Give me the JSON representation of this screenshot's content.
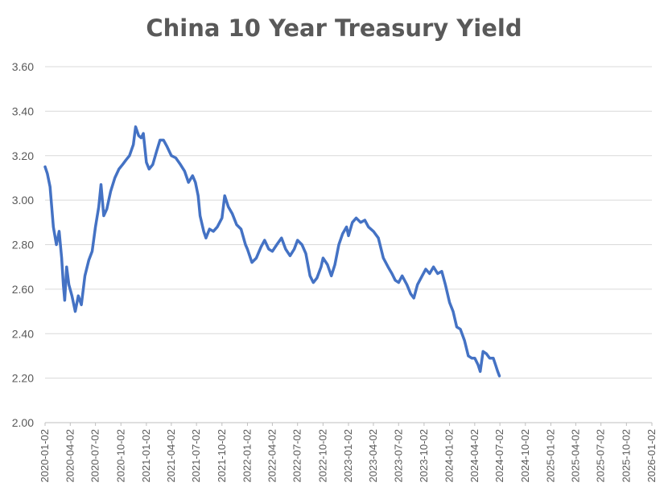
{
  "chart_data": {
    "type": "line",
    "title": "China 10 Year Treasury Yield",
    "xlabel": "",
    "ylabel": "",
    "ylim": [
      2.0,
      3.6
    ],
    "yticks": [
      "3.60",
      "3.40",
      "3.20",
      "3.00",
      "2.80",
      "2.60",
      "2.40",
      "2.20",
      "2.00"
    ],
    "xlim": [
      "2020-01-02",
      "2026-01-02"
    ],
    "xticks": [
      "2020-01-02",
      "2020-04-02",
      "2020-07-02",
      "2020-10-02",
      "2021-01-02",
      "2021-04-02",
      "2021-07-02",
      "2021-10-02",
      "2022-01-02",
      "2022-04-02",
      "2022-07-02",
      "2022-10-02",
      "2023-01-02",
      "2023-04-02",
      "2023-07-02",
      "2023-10-02",
      "2024-01-02",
      "2024-04-02",
      "2024-07-02",
      "2024-10-02",
      "2025-01-02",
      "2025-04-02",
      "2025-07-02",
      "2025-10-02",
      "2026-01-02"
    ],
    "grid": true,
    "line_color": "#4472C4",
    "series": [
      {
        "points": [
          [
            "2020-01-02",
            3.15
          ],
          [
            "2020-01-10",
            3.12
          ],
          [
            "2020-01-20",
            3.06
          ],
          [
            "2020-02-01",
            2.88
          ],
          [
            "2020-02-12",
            2.8
          ],
          [
            "2020-02-22",
            2.86
          ],
          [
            "2020-03-02",
            2.74
          ],
          [
            "2020-03-08",
            2.62
          ],
          [
            "2020-03-13",
            2.55
          ],
          [
            "2020-03-20",
            2.7
          ],
          [
            "2020-03-28",
            2.62
          ],
          [
            "2020-04-08",
            2.57
          ],
          [
            "2020-04-20",
            2.5
          ],
          [
            "2020-05-01",
            2.57
          ],
          [
            "2020-05-12",
            2.53
          ],
          [
            "2020-05-25",
            2.66
          ],
          [
            "2020-06-08",
            2.73
          ],
          [
            "2020-06-20",
            2.77
          ],
          [
            "2020-07-02",
            2.88
          ],
          [
            "2020-07-14",
            2.97
          ],
          [
            "2020-07-22",
            3.07
          ],
          [
            "2020-08-01",
            2.93
          ],
          [
            "2020-08-12",
            2.96
          ],
          [
            "2020-08-26",
            3.04
          ],
          [
            "2020-09-10",
            3.1
          ],
          [
            "2020-09-25",
            3.14
          ],
          [
            "2020-10-08",
            3.16
          ],
          [
            "2020-10-20",
            3.18
          ],
          [
            "2020-11-02",
            3.2
          ],
          [
            "2020-11-16",
            3.25
          ],
          [
            "2020-11-24",
            3.33
          ],
          [
            "2020-12-05",
            3.29
          ],
          [
            "2020-12-14",
            3.28
          ],
          [
            "2020-12-22",
            3.3
          ],
          [
            "2021-01-02",
            3.17
          ],
          [
            "2021-01-12",
            3.14
          ],
          [
            "2021-01-25",
            3.16
          ],
          [
            "2021-02-08",
            3.22
          ],
          [
            "2021-02-20",
            3.27
          ],
          [
            "2021-03-05",
            3.27
          ],
          [
            "2021-03-18",
            3.24
          ],
          [
            "2021-04-02",
            3.2
          ],
          [
            "2021-04-18",
            3.19
          ],
          [
            "2021-05-05",
            3.16
          ],
          [
            "2021-05-20",
            3.13
          ],
          [
            "2021-06-03",
            3.08
          ],
          [
            "2021-06-18",
            3.11
          ],
          [
            "2021-06-28",
            3.08
          ],
          [
            "2021-07-08",
            3.02
          ],
          [
            "2021-07-15",
            2.93
          ],
          [
            "2021-07-28",
            2.86
          ],
          [
            "2021-08-05",
            2.83
          ],
          [
            "2021-08-18",
            2.87
          ],
          [
            "2021-09-01",
            2.86
          ],
          [
            "2021-09-15",
            2.88
          ],
          [
            "2021-10-02",
            2.92
          ],
          [
            "2021-10-12",
            3.02
          ],
          [
            "2021-10-25",
            2.97
          ],
          [
            "2021-11-08",
            2.94
          ],
          [
            "2021-11-24",
            2.89
          ],
          [
            "2021-12-10",
            2.87
          ],
          [
            "2021-12-26",
            2.8
          ],
          [
            "2022-01-02",
            2.78
          ],
          [
            "2022-01-18",
            2.72
          ],
          [
            "2022-02-03",
            2.74
          ],
          [
            "2022-02-20",
            2.79
          ],
          [
            "2022-03-05",
            2.82
          ],
          [
            "2022-03-20",
            2.78
          ],
          [
            "2022-04-02",
            2.77
          ],
          [
            "2022-04-18",
            2.8
          ],
          [
            "2022-05-05",
            2.83
          ],
          [
            "2022-05-20",
            2.78
          ],
          [
            "2022-06-05",
            2.75
          ],
          [
            "2022-06-20",
            2.78
          ],
          [
            "2022-07-02",
            2.82
          ],
          [
            "2022-07-18",
            2.8
          ],
          [
            "2022-08-01",
            2.76
          ],
          [
            "2022-08-16",
            2.66
          ],
          [
            "2022-08-28",
            2.63
          ],
          [
            "2022-09-10",
            2.65
          ],
          [
            "2022-09-25",
            2.7
          ],
          [
            "2022-10-02",
            2.74
          ],
          [
            "2022-10-18",
            2.71
          ],
          [
            "2022-11-01",
            2.66
          ],
          [
            "2022-11-14",
            2.71
          ],
          [
            "2022-11-28",
            2.8
          ],
          [
            "2022-12-12",
            2.85
          ],
          [
            "2022-12-26",
            2.88
          ],
          [
            "2023-01-02",
            2.84
          ],
          [
            "2023-01-16",
            2.9
          ],
          [
            "2023-01-30",
            2.92
          ],
          [
            "2023-02-15",
            2.9
          ],
          [
            "2023-03-02",
            2.91
          ],
          [
            "2023-03-15",
            2.88
          ],
          [
            "2023-04-02",
            2.86
          ],
          [
            "2023-04-20",
            2.83
          ],
          [
            "2023-05-08",
            2.74
          ],
          [
            "2023-05-25",
            2.7
          ],
          [
            "2023-06-08",
            2.67
          ],
          [
            "2023-06-20",
            2.64
          ],
          [
            "2023-07-02",
            2.63
          ],
          [
            "2023-07-15",
            2.66
          ],
          [
            "2023-08-01",
            2.62
          ],
          [
            "2023-08-14",
            2.58
          ],
          [
            "2023-08-26",
            2.56
          ],
          [
            "2023-09-08",
            2.62
          ],
          [
            "2023-09-25",
            2.66
          ],
          [
            "2023-10-08",
            2.69
          ],
          [
            "2023-10-22",
            2.67
          ],
          [
            "2023-11-05",
            2.7
          ],
          [
            "2023-11-20",
            2.67
          ],
          [
            "2023-12-05",
            2.68
          ],
          [
            "2023-12-18",
            2.62
          ],
          [
            "2024-01-02",
            2.54
          ],
          [
            "2024-01-15",
            2.5
          ],
          [
            "2024-01-28",
            2.43
          ],
          [
            "2024-02-10",
            2.42
          ],
          [
            "2024-02-25",
            2.37
          ],
          [
            "2024-03-10",
            2.3
          ],
          [
            "2024-03-22",
            2.29
          ],
          [
            "2024-04-02",
            2.29
          ],
          [
            "2024-04-14",
            2.26
          ],
          [
            "2024-04-22",
            2.23
          ],
          [
            "2024-05-02",
            2.32
          ],
          [
            "2024-05-14",
            2.31
          ],
          [
            "2024-05-26",
            2.29
          ],
          [
            "2024-06-08",
            2.29
          ],
          [
            "2024-06-16",
            2.26
          ],
          [
            "2024-06-24",
            2.23
          ],
          [
            "2024-06-30",
            2.21
          ]
        ]
      }
    ]
  }
}
